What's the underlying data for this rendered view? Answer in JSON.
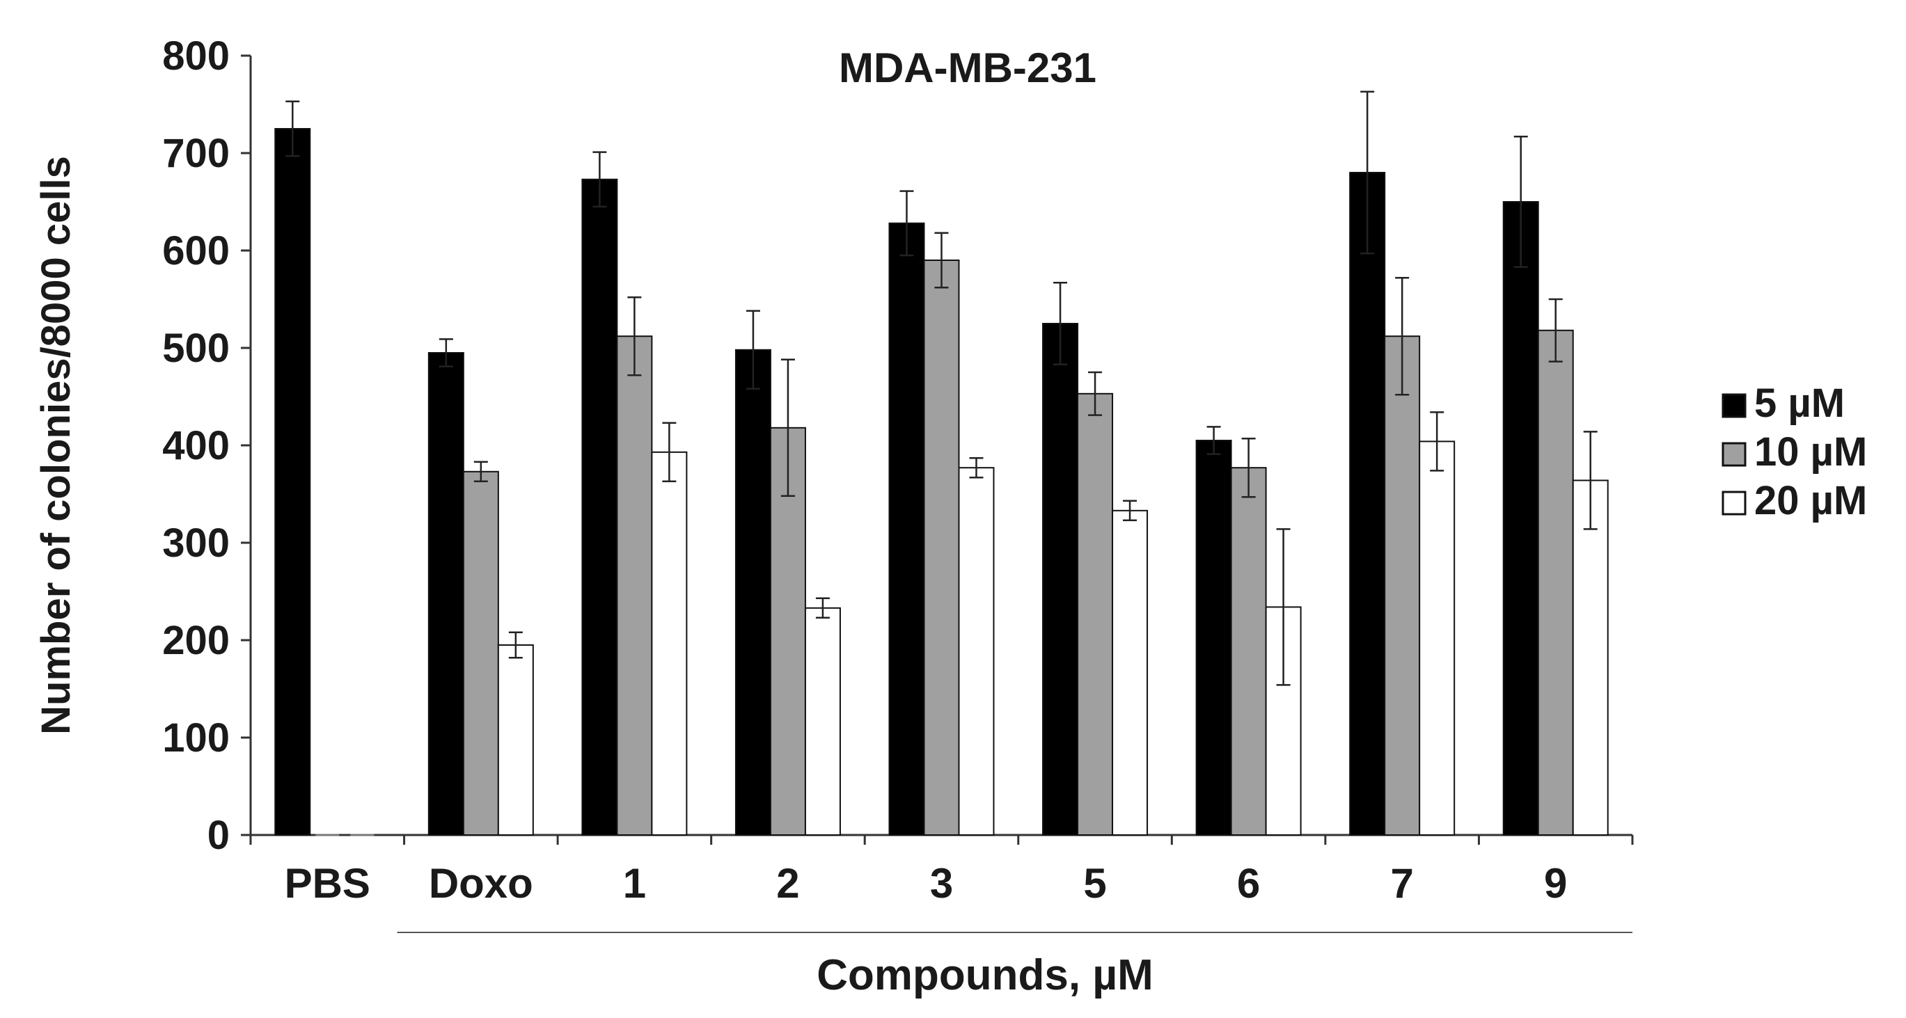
{
  "chart_data": {
    "type": "bar",
    "title": "MDA-MB-231",
    "xlabel": "Compounds, µM",
    "ylabel": "Number of colonies/8000 cells",
    "ylim": [
      0,
      800
    ],
    "yticks": [
      0,
      100,
      200,
      300,
      400,
      500,
      600,
      700,
      800
    ],
    "grid": false,
    "legend_position": "right",
    "categories": [
      "PBS",
      "Doxo",
      "1",
      "2",
      "3",
      "5",
      "6",
      "7",
      "9"
    ],
    "series": [
      {
        "name": "5 µM",
        "color": "#000000",
        "values": [
          725,
          495,
          673,
          498,
          628,
          525,
          405,
          680,
          650
        ],
        "errors": [
          28,
          14,
          28,
          40,
          33,
          42,
          14,
          83,
          67
        ]
      },
      {
        "name": "10 µM",
        "color": "#a0a0a0",
        "values": [
          0,
          373,
          512,
          418,
          590,
          453,
          377,
          512,
          518
        ],
        "errors": [
          0,
          10,
          40,
          70,
          28,
          22,
          30,
          60,
          32
        ]
      },
      {
        "name": "20 µM",
        "color": "#ffffff",
        "values": [
          0,
          195,
          393,
          233,
          377,
          333,
          234,
          404,
          364
        ],
        "errors": [
          0,
          13,
          30,
          10,
          10,
          10,
          80,
          30,
          50
        ]
      }
    ]
  }
}
